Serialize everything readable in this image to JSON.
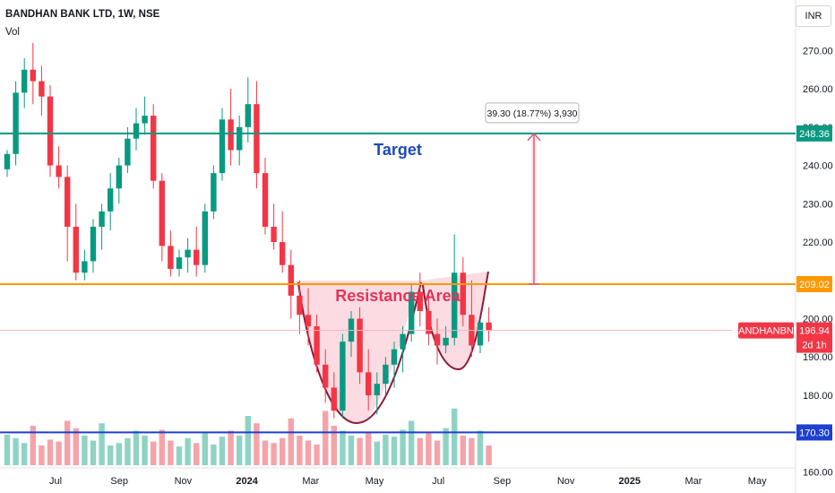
{
  "header": {
    "symbol_title": "BANDHAN BANK LTD, 1W, NSE",
    "volume_label": "Vol",
    "currency": "INR"
  },
  "chart_data": {
    "type": "candlestick",
    "ylim": [
      158,
      275
    ],
    "price_ticks": [
      270,
      260,
      250,
      240,
      230,
      220,
      210,
      200,
      190,
      180,
      170,
      160
    ],
    "price_tick_labels": [
      "270.00",
      "260.00",
      "250.00",
      "240.00",
      "230.00",
      "220.00",
      "210.00",
      "200.00",
      "190.00",
      "180.00",
      "170.00",
      "160.00"
    ],
    "time_ticks": [
      "Jul",
      "Sep",
      "Nov",
      "2024",
      "Mar",
      "May",
      "Jul",
      "Sep",
      "Nov",
      "2025",
      "Mar",
      "May"
    ],
    "horizontal_levels": [
      {
        "value": 248.36,
        "label": "248.36",
        "color": "#089981"
      },
      {
        "value": 209.02,
        "label": "209.02",
        "color": "#ff9800"
      },
      {
        "value": 170.3,
        "label": "170.30",
        "color": "#1e3fd0"
      }
    ],
    "last_price": {
      "symbol": "BANDHANBNK",
      "value": 196.94,
      "label": "196.94",
      "countdown": "2d 1h",
      "color": "#f23645"
    },
    "annotations": {
      "target": "Target",
      "resistance": "Resistance Area",
      "measure": "39.30 (18.77%) 3,930"
    },
    "candles": [
      [
        239,
        244,
        237,
        243
      ],
      [
        243,
        262,
        240,
        259
      ],
      [
        259,
        268,
        255,
        265
      ],
      [
        265,
        272,
        256,
        262
      ],
      [
        262,
        266,
        253,
        258
      ],
      [
        258,
        261,
        237,
        240
      ],
      [
        240,
        245,
        234,
        237
      ],
      [
        237,
        240,
        215,
        224
      ],
      [
        224,
        230,
        210,
        212
      ],
      [
        212,
        218,
        210,
        215
      ],
      [
        215,
        226,
        212,
        224
      ],
      [
        224,
        230,
        218,
        228
      ],
      [
        228,
        238,
        223,
        234
      ],
      [
        234,
        242,
        230,
        240
      ],
      [
        240,
        250,
        238,
        247
      ],
      [
        247,
        255,
        244,
        251
      ],
      [
        251,
        258,
        248,
        253
      ],
      [
        253,
        256,
        234,
        236
      ],
      [
        236,
        238,
        215,
        219
      ],
      [
        219,
        223,
        211,
        213
      ],
      [
        213,
        218,
        211,
        216
      ],
      [
        216,
        221,
        212,
        218
      ],
      [
        218,
        224,
        211,
        214
      ],
      [
        214,
        230,
        212,
        228
      ],
      [
        228,
        240,
        226,
        238
      ],
      [
        238,
        255,
        236,
        252
      ],
      [
        252,
        260,
        240,
        244
      ],
      [
        244,
        253,
        240,
        250
      ],
      [
        250,
        263,
        246,
        256
      ],
      [
        256,
        262,
        234,
        238
      ],
      [
        238,
        242,
        222,
        224
      ],
      [
        224,
        230,
        218,
        220
      ],
      [
        220,
        228,
        212,
        214
      ],
      [
        214,
        218,
        200,
        206
      ],
      [
        206,
        210,
        196,
        201
      ],
      [
        201,
        208,
        193,
        198
      ],
      [
        198,
        201,
        186,
        188
      ],
      [
        188,
        192,
        178,
        182
      ],
      [
        182,
        186,
        174,
        176
      ],
      [
        176,
        196,
        174,
        194
      ],
      [
        194,
        202,
        190,
        200
      ],
      [
        200,
        203,
        183,
        186
      ],
      [
        186,
        192,
        176,
        180
      ],
      [
        180,
        186,
        175,
        183
      ],
      [
        183,
        190,
        180,
        188
      ],
      [
        188,
        194,
        182,
        192
      ],
      [
        192,
        198,
        186,
        196
      ],
      [
        196,
        209,
        194,
        207
      ],
      [
        207,
        212,
        198,
        202
      ],
      [
        202,
        207,
        193,
        196
      ],
      [
        196,
        200,
        188,
        193
      ],
      [
        193,
        198,
        191,
        195
      ],
      [
        195,
        222,
        193,
        212
      ],
      [
        212,
        216,
        198,
        201
      ],
      [
        201,
        210,
        190,
        193
      ],
      [
        193,
        200,
        191,
        199
      ],
      [
        199,
        203,
        194,
        197
      ]
    ],
    "volume": [
      62,
      55,
      45,
      80,
      40,
      52,
      48,
      90,
      75,
      60,
      50,
      85,
      40,
      45,
      55,
      70,
      60,
      48,
      72,
      50,
      38,
      55,
      45,
      65,
      42,
      58,
      70,
      60,
      100,
      85,
      50,
      45,
      55,
      95,
      60,
      50,
      42,
      110,
      80,
      70,
      60,
      55,
      65,
      48,
      62,
      58,
      72,
      90,
      55,
      65,
      50,
      75,
      115,
      60,
      55,
      70,
      40
    ]
  }
}
